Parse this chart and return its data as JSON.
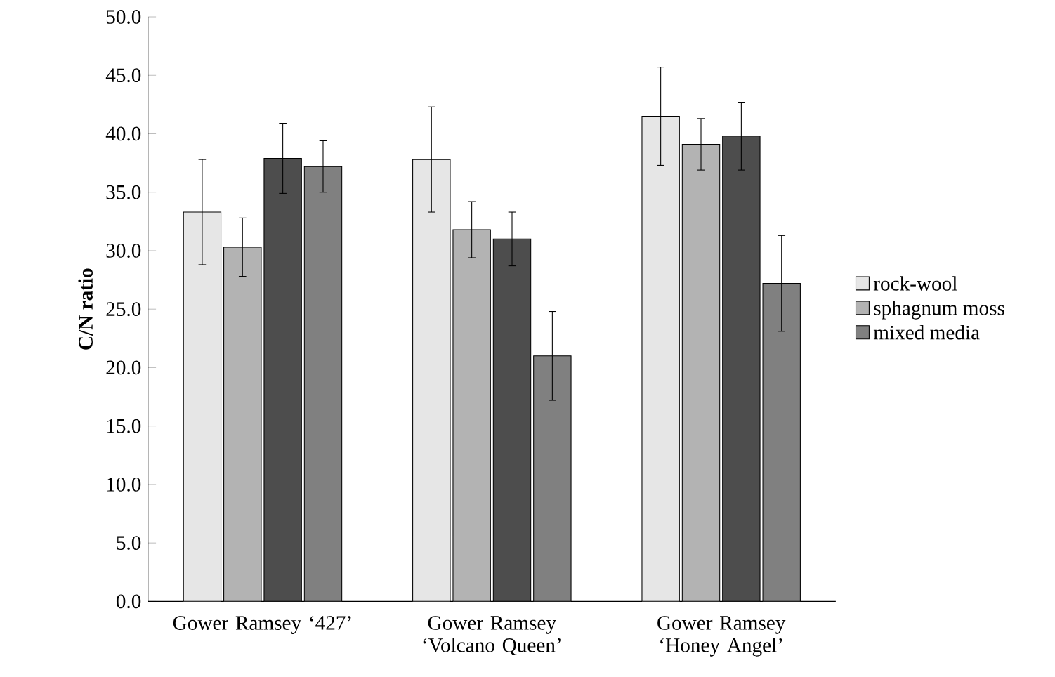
{
  "chart_data": {
    "type": "bar",
    "ylabel": "C/N ratio",
    "categories": [
      "Gower Ramsey ‘427’",
      "Gower Ramsey ‘Volcano Queen’",
      "Gower Ramsey ‘Honey Angel’"
    ],
    "series": [
      {
        "name": "rock-wool",
        "color": "#e6e6e6",
        "values": [
          33.3,
          37.8,
          41.5
        ],
        "errors": [
          4.5,
          4.5,
          4.2
        ]
      },
      {
        "name": "sphagnum moss",
        "color": "#b3b3b3",
        "values": [
          30.3,
          31.8,
          39.1
        ],
        "errors": [
          2.5,
          2.4,
          2.2
        ]
      },
      {
        "color": "#4d4d4d",
        "values": [
          37.9,
          31.0,
          39.8
        ],
        "errors": [
          3.0,
          2.3,
          2.9
        ]
      },
      {
        "name": "mixed media",
        "color": "#808080",
        "values": [
          37.2,
          21.0,
          27.2
        ],
        "errors": [
          2.2,
          3.8,
          4.1
        ]
      }
    ],
    "ylim": [
      0,
      50
    ],
    "yticks": [
      {
        "value": 0,
        "label": "0.0"
      },
      {
        "value": 5,
        "label": "5.0"
      },
      {
        "value": 10,
        "label": "10.0"
      },
      {
        "value": 15,
        "label": "15.0"
      },
      {
        "value": 20,
        "label": "20.0"
      },
      {
        "value": 25,
        "label": "25.0"
      },
      {
        "value": 30,
        "label": "30.0"
      },
      {
        "value": 35,
        "label": "35.0"
      },
      {
        "value": 40,
        "label": "40.0"
      },
      {
        "value": 45,
        "label": "45.0"
      },
      {
        "value": 50,
        "label": "50.0"
      }
    ],
    "grid": false,
    "legend": "right"
  }
}
